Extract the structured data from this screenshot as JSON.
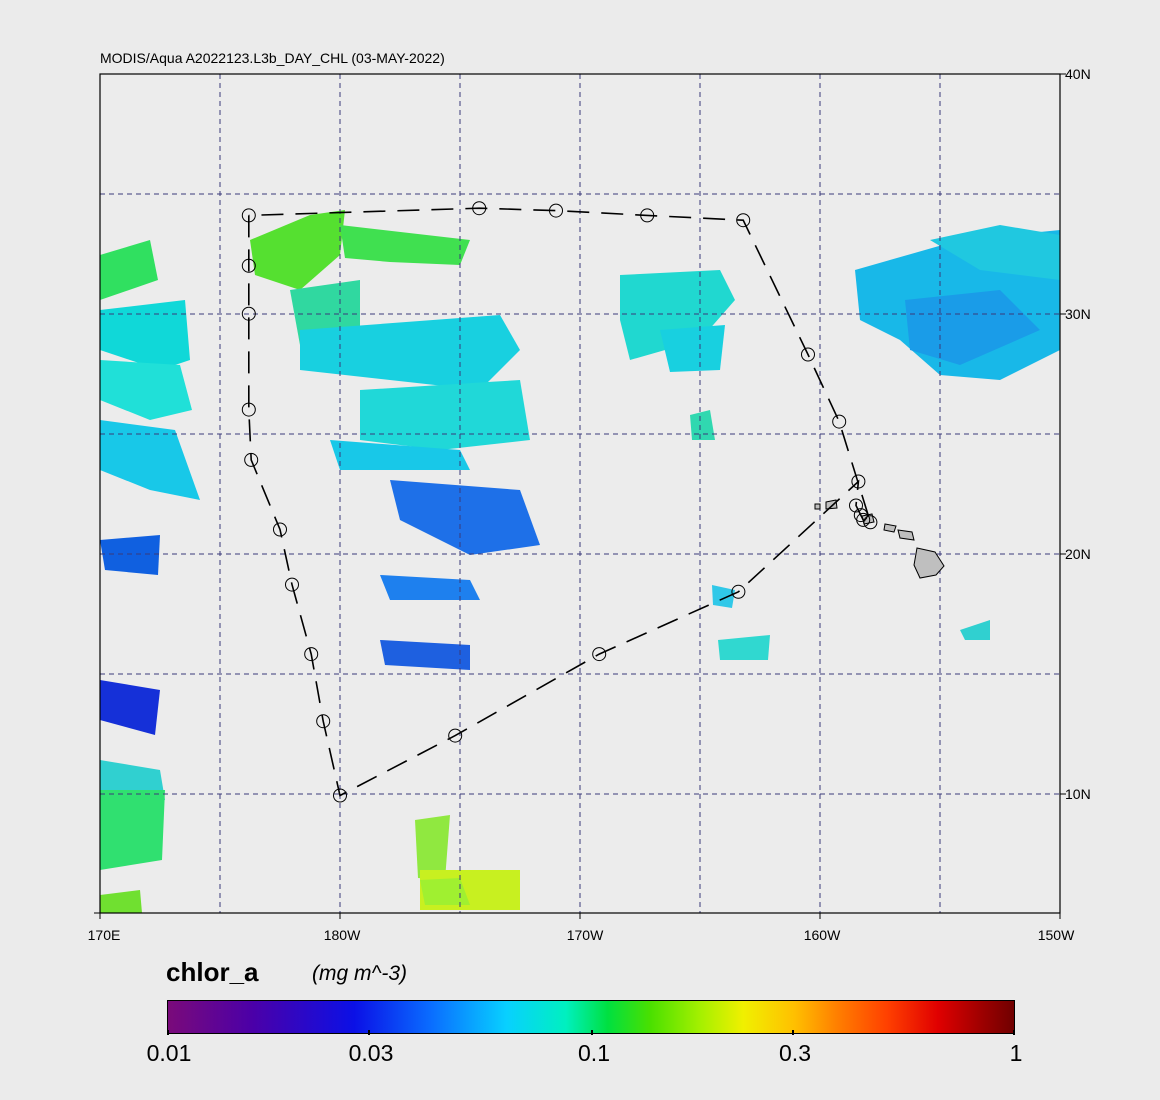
{
  "map": {
    "title": "MODIS/Aqua A2022123.L3b_DAY_CHL (03-MAY-2022)",
    "lat_labels": [
      "40N",
      "30N",
      "20N",
      "10N"
    ],
    "lon_labels": [
      "170E",
      "180W",
      "170W",
      "160W",
      "150W"
    ],
    "bounds": {
      "lon_min": 170,
      "lon_max": 210,
      "lat_min": 5,
      "lat_max": 40
    },
    "gridline_color": "#3a3a7a",
    "track_stations": [
      [
        176.2,
        34.1
      ],
      [
        176.2,
        32.0
      ],
      [
        176.2,
        30.0
      ],
      [
        176.2,
        26.0
      ],
      [
        176.3,
        23.9
      ],
      [
        177.5,
        21.0
      ],
      [
        178.0,
        18.7
      ],
      [
        178.8,
        15.8
      ],
      [
        179.3,
        13.0
      ],
      [
        180.0,
        9.9
      ],
      [
        184.8,
        12.4
      ],
      [
        190.8,
        15.8
      ],
      [
        196.6,
        18.4
      ],
      [
        201.6,
        23.0
      ],
      [
        201.5,
        22.0
      ],
      [
        201.7,
        21.6
      ],
      [
        201.8,
        21.4
      ],
      [
        202.1,
        21.3
      ],
      [
        200.8,
        25.5
      ],
      [
        199.5,
        28.3
      ],
      [
        196.8,
        33.9
      ],
      [
        192.8,
        34.1
      ],
      [
        189.0,
        34.3
      ],
      [
        185.8,
        34.4
      ]
    ]
  },
  "colorbar": {
    "title": "chlor_a",
    "units": "(mg m^-3)",
    "ticks": [
      "0.01",
      "0.03",
      "0.1",
      "0.3",
      "1"
    ],
    "scale": "log"
  }
}
